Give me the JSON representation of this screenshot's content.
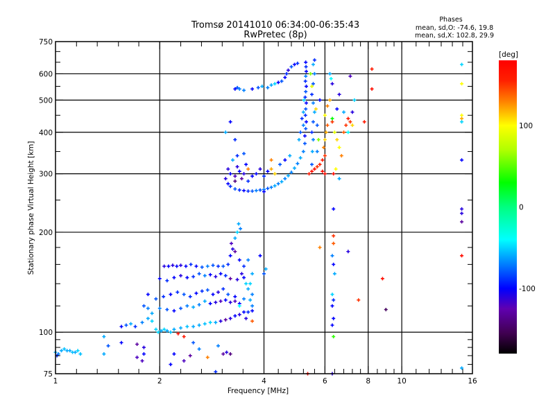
{
  "chart_data": {
    "type": "scatter",
    "title": "Tromsø 20141010 06:34:00-06:35:43",
    "subtitle": "RwPretec (8p)",
    "stats": {
      "heading": "Phases",
      "line_o": "mean, sd,O: -74.6, 19.8",
      "line_x": "mean, sd,X: 102.8, 29.9"
    },
    "xlabel": "Frequency [MHz]",
    "ylabel": "Stationary phase Virtual Height [km]",
    "xscale": "log",
    "yscale": "log",
    "xlim": [
      1,
      16
    ],
    "ylim": [
      75,
      750
    ],
    "xticks": [
      1,
      2,
      4,
      6,
      8,
      10,
      16
    ],
    "xtick_labels": [
      "1",
      "2",
      "4",
      "6",
      "8",
      "10",
      "16"
    ],
    "yticks": [
      75,
      100,
      200,
      300,
      400,
      500,
      600,
      750
    ],
    "ytick_labels": [
      "75",
      "100",
      "200",
      "300",
      "400",
      "500",
      "600",
      "750"
    ],
    "grid": true,
    "colorbar": {
      "label": "[deg]",
      "range": [
        -180,
        180
      ],
      "ticks": [
        100,
        0,
        -100
      ],
      "tick_labels": [
        "100",
        "0",
        "-100"
      ]
    },
    "point_format": [
      "frequency_MHz",
      "height_km",
      "phase_deg"
    ],
    "points": [
      [
        1.0,
        87,
        -60
      ],
      [
        1.02,
        86,
        -70
      ],
      [
        1.04,
        88,
        -60
      ],
      [
        1.06,
        89,
        -55
      ],
      [
        1.08,
        88,
        -60
      ],
      [
        1.1,
        88,
        -60
      ],
      [
        1.12,
        87,
        -55
      ],
      [
        1.14,
        87,
        -60
      ],
      [
        1.16,
        88,
        -50
      ],
      [
        1.18,
        86,
        -55
      ],
      [
        1.01,
        85,
        -90
      ],
      [
        1.38,
        97,
        -60
      ],
      [
        1.42,
        91,
        -80
      ],
      [
        1.38,
        86,
        -60
      ],
      [
        1.55,
        93,
        -100
      ],
      [
        1.72,
        92,
        -130
      ],
      [
        1.72,
        84,
        -120
      ],
      [
        1.8,
        90,
        -110
      ],
      [
        1.8,
        86,
        -100
      ],
      [
        1.78,
        82,
        -120
      ],
      [
        2.26,
        99,
        170
      ],
      [
        2.35,
        97,
        160
      ],
      [
        2.5,
        93,
        -80
      ],
      [
        2.45,
        85,
        -130
      ],
      [
        2.6,
        89,
        -70
      ],
      [
        2.75,
        84,
        130
      ],
      [
        3.12,
        87,
        -110
      ],
      [
        3.2,
        86,
        -140
      ],
      [
        2.95,
        91,
        -70
      ],
      [
        3.05,
        86,
        -130
      ],
      [
        2.2,
        86,
        -100
      ],
      [
        2.15,
        80,
        -100
      ],
      [
        2.35,
        82,
        -120
      ],
      [
        2.9,
        76,
        -90
      ],
      [
        5.35,
        75,
        170
      ],
      [
        6.3,
        75,
        -110
      ],
      [
        6.35,
        97,
        40
      ],
      [
        1.55,
        104,
        -100
      ],
      [
        1.6,
        105,
        -80
      ],
      [
        1.65,
        106,
        -60
      ],
      [
        1.7,
        104,
        -90
      ],
      [
        1.78,
        107,
        -70
      ],
      [
        1.85,
        110,
        -60
      ],
      [
        1.9,
        108,
        -50
      ],
      [
        1.95,
        102,
        -50
      ],
      [
        1.98,
        100,
        -50
      ],
      [
        2.02,
        101,
        -60
      ],
      [
        2.06,
        102,
        -50
      ],
      [
        2.1,
        101,
        -60
      ],
      [
        2.15,
        100,
        -55
      ],
      [
        2.2,
        102,
        -60
      ],
      [
        2.3,
        103,
        -60
      ],
      [
        2.4,
        104,
        -55
      ],
      [
        2.5,
        104,
        -60
      ],
      [
        2.6,
        105,
        -60
      ],
      [
        2.7,
        106,
        -55
      ],
      [
        2.8,
        107,
        -50
      ],
      [
        2.9,
        107,
        -60
      ],
      [
        3.0,
        108,
        -110
      ],
      [
        3.1,
        109,
        -130
      ],
      [
        3.2,
        110,
        -110
      ],
      [
        3.3,
        112,
        -100
      ],
      [
        3.4,
        113,
        -110
      ],
      [
        3.5,
        115,
        -100
      ],
      [
        3.6,
        115,
        -90
      ],
      [
        3.7,
        116,
        -100
      ],
      [
        1.8,
        120,
        -80
      ],
      [
        1.85,
        118,
        -70
      ],
      [
        1.9,
        114,
        -60
      ],
      [
        2.0,
        118,
        -70
      ],
      [
        2.1,
        117,
        -80
      ],
      [
        2.2,
        116,
        -100
      ],
      [
        2.3,
        118,
        -80
      ],
      [
        2.4,
        120,
        -70
      ],
      [
        2.5,
        119,
        -60
      ],
      [
        2.6,
        121,
        -70
      ],
      [
        2.7,
        124,
        -60
      ],
      [
        2.8,
        122,
        -100
      ],
      [
        2.9,
        123,
        -110
      ],
      [
        3.0,
        124,
        -120
      ],
      [
        3.1,
        125,
        -100
      ],
      [
        3.2,
        123,
        -110
      ],
      [
        3.3,
        124,
        -120
      ],
      [
        3.4,
        122,
        -100
      ],
      [
        1.85,
        130,
        -100
      ],
      [
        1.95,
        126,
        -80
      ],
      [
        2.05,
        128,
        -90
      ],
      [
        2.15,
        130,
        -100
      ],
      [
        2.25,
        132,
        -90
      ],
      [
        2.35,
        130,
        -80
      ],
      [
        2.45,
        128,
        -90
      ],
      [
        2.55,
        131,
        -100
      ],
      [
        2.65,
        133,
        -90
      ],
      [
        2.75,
        134,
        -80
      ],
      [
        2.85,
        130,
        -100
      ],
      [
        2.95,
        132,
        -110
      ],
      [
        3.05,
        135,
        -90
      ],
      [
        3.15,
        130,
        -80
      ],
      [
        3.3,
        128,
        -100
      ],
      [
        3.5,
        126,
        -70
      ],
      [
        3.65,
        125,
        -60
      ],
      [
        2.0,
        145,
        -100
      ],
      [
        2.1,
        143,
        -90
      ],
      [
        2.2,
        146,
        -100
      ],
      [
        2.3,
        148,
        -110
      ],
      [
        2.4,
        146,
        -100
      ],
      [
        2.5,
        147,
        -90
      ],
      [
        2.6,
        150,
        -80
      ],
      [
        2.7,
        148,
        -70
      ],
      [
        2.8,
        149,
        -100
      ],
      [
        2.9,
        147,
        -110
      ],
      [
        3.0,
        150,
        -100
      ],
      [
        3.1,
        148,
        -90
      ],
      [
        3.2,
        145,
        -130
      ],
      [
        3.35,
        144,
        -110
      ],
      [
        3.5,
        146,
        -100
      ],
      [
        2.06,
        158,
        -110
      ],
      [
        2.12,
        158,
        -100
      ],
      [
        2.18,
        159,
        -110
      ],
      [
        2.24,
        158,
        -100
      ],
      [
        2.3,
        159,
        -110
      ],
      [
        2.38,
        158,
        -100
      ],
      [
        2.46,
        160,
        -90
      ],
      [
        2.55,
        158,
        -100
      ],
      [
        2.65,
        157,
        -80
      ],
      [
        2.75,
        158,
        -70
      ],
      [
        2.85,
        159,
        -80
      ],
      [
        2.95,
        158,
        -90
      ],
      [
        3.05,
        158,
        -80
      ],
      [
        3.15,
        160,
        -90
      ],
      [
        3.2,
        170,
        -100
      ],
      [
        3.25,
        178,
        -110
      ],
      [
        3.22,
        185,
        -120
      ],
      [
        3.3,
        192,
        -60
      ],
      [
        3.35,
        200,
        -50
      ],
      [
        3.38,
        212,
        -60
      ],
      [
        3.42,
        205,
        -70
      ],
      [
        3.3,
        175,
        -130
      ],
      [
        3.4,
        165,
        -100
      ],
      [
        3.5,
        158,
        -90
      ],
      [
        3.45,
        150,
        -110
      ],
      [
        3.55,
        140,
        -50
      ],
      [
        3.6,
        135,
        -60
      ],
      [
        3.7,
        130,
        -70
      ],
      [
        3.65,
        140,
        -50
      ],
      [
        3.7,
        150,
        -60
      ],
      [
        3.6,
        165,
        -70
      ],
      [
        4.0,
        150,
        -80
      ],
      [
        4.05,
        155,
        -60
      ],
      [
        3.9,
        170,
        -100
      ],
      [
        3.7,
        120,
        -70
      ],
      [
        3.55,
        110,
        -110
      ],
      [
        3.7,
        108,
        140
      ],
      [
        3.4,
        120,
        -40
      ],
      [
        3.1,
        290,
        -110
      ],
      [
        3.15,
        280,
        -100
      ],
      [
        3.2,
        275,
        -90
      ],
      [
        3.3,
        270,
        -80
      ],
      [
        3.4,
        268,
        -90
      ],
      [
        3.5,
        267,
        -100
      ],
      [
        3.6,
        266,
        -90
      ],
      [
        3.7,
        266,
        -80
      ],
      [
        3.8,
        267,
        -70
      ],
      [
        3.9,
        268,
        -80
      ],
      [
        4.0,
        269,
        -70
      ],
      [
        4.1,
        271,
        -80
      ],
      [
        4.2,
        273,
        -70
      ],
      [
        4.3,
        276,
        -60
      ],
      [
        4.4,
        280,
        -70
      ],
      [
        4.5,
        284,
        -60
      ],
      [
        4.6,
        290,
        -70
      ],
      [
        4.7,
        296,
        -60
      ],
      [
        4.8,
        303,
        -70
      ],
      [
        4.9,
        312,
        -60
      ],
      [
        5.0,
        322,
        -70
      ],
      [
        5.1,
        335,
        -60
      ],
      [
        5.2,
        350,
        -70
      ],
      [
        5.25,
        370,
        -80
      ],
      [
        3.15,
        310,
        -110
      ],
      [
        3.2,
        300,
        -100
      ],
      [
        3.3,
        295,
        -120
      ],
      [
        3.35,
        315,
        -110
      ],
      [
        3.4,
        305,
        -100
      ],
      [
        3.45,
        290,
        -130
      ],
      [
        3.5,
        300,
        -110
      ],
      [
        3.55,
        320,
        -100
      ],
      [
        3.6,
        285,
        -90
      ],
      [
        3.7,
        295,
        -100
      ],
      [
        3.25,
        330,
        -60
      ],
      [
        3.35,
        340,
        -90
      ],
      [
        3.5,
        345,
        -80
      ],
      [
        3.3,
        285,
        -140
      ],
      [
        3.6,
        310,
        130
      ],
      [
        3.8,
        300,
        -100
      ],
      [
        3.9,
        310,
        -110
      ],
      [
        4.0,
        295,
        -90
      ],
      [
        4.1,
        305,
        -100
      ],
      [
        4.2,
        310,
        120
      ],
      [
        4.3,
        300,
        110
      ],
      [
        4.45,
        320,
        -80
      ],
      [
        4.6,
        330,
        -100
      ],
      [
        4.75,
        340,
        -60
      ],
      [
        4.2,
        330,
        130
      ],
      [
        5.25,
        390,
        -100
      ],
      [
        5.28,
        410,
        -80
      ],
      [
        5.3,
        430,
        -100
      ],
      [
        5.27,
        450,
        -90
      ],
      [
        5.28,
        470,
        -80
      ],
      [
        5.3,
        490,
        -100
      ],
      [
        5.26,
        510,
        -90
      ],
      [
        5.28,
        530,
        -80
      ],
      [
        5.3,
        550,
        -100
      ],
      [
        5.27,
        570,
        -90
      ],
      [
        5.28,
        590,
        -70
      ],
      [
        5.3,
        610,
        -100
      ],
      [
        5.29,
        630,
        -90
      ],
      [
        5.28,
        650,
        -100
      ],
      [
        5.2,
        420,
        -70
      ],
      [
        5.2,
        460,
        -60
      ],
      [
        5.22,
        500,
        -50
      ],
      [
        5.1,
        400,
        -80
      ],
      [
        5.05,
        380,
        -60
      ],
      [
        5.15,
        440,
        -90
      ],
      [
        5.5,
        320,
        -80
      ],
      [
        5.52,
        350,
        -60
      ],
      [
        5.55,
        380,
        -70
      ],
      [
        5.5,
        400,
        -90
      ],
      [
        5.55,
        430,
        -80
      ],
      [
        5.6,
        460,
        -60
      ],
      [
        5.55,
        490,
        -70
      ],
      [
        5.5,
        520,
        -90
      ],
      [
        5.55,
        560,
        -80
      ],
      [
        5.6,
        600,
        -70
      ],
      [
        5.55,
        640,
        -60
      ],
      [
        5.6,
        660,
        -90
      ],
      [
        5.7,
        350,
        -70
      ],
      [
        5.75,
        380,
        60
      ],
      [
        5.7,
        420,
        -80
      ],
      [
        5.65,
        470,
        110
      ],
      [
        5.8,
        500,
        -100
      ],
      [
        5.45,
        600,
        60
      ],
      [
        5.5,
        550,
        90
      ],
      [
        5.4,
        300,
        160
      ],
      [
        5.5,
        305,
        170
      ],
      [
        5.6,
        310,
        165
      ],
      [
        5.7,
        315,
        150
      ],
      [
        5.8,
        320,
        155
      ],
      [
        5.9,
        330,
        160
      ],
      [
        6.0,
        340,
        150
      ],
      [
        5.95,
        360,
        130
      ],
      [
        6.0,
        380,
        110
      ],
      [
        6.05,
        400,
        120
      ],
      [
        6.1,
        420,
        140
      ],
      [
        6.0,
        450,
        100
      ],
      [
        6.1,
        480,
        130
      ],
      [
        6.2,
        500,
        120
      ],
      [
        6.3,
        430,
        150
      ],
      [
        6.4,
        400,
        90
      ],
      [
        6.5,
        380,
        110
      ],
      [
        6.6,
        360,
        100
      ],
      [
        6.7,
        340,
        130
      ],
      [
        6.8,
        400,
        140
      ],
      [
        6.9,
        420,
        150
      ],
      [
        7.0,
        440,
        160
      ],
      [
        7.1,
        430,
        150
      ],
      [
        7.2,
        420,
        110
      ],
      [
        7.0,
        400,
        -40
      ],
      [
        6.5,
        470,
        -100
      ],
      [
        6.8,
        460,
        -60
      ],
      [
        6.3,
        440,
        30
      ],
      [
        7.3,
        500,
        -50
      ],
      [
        7.2,
        460,
        -110
      ],
      [
        6.35,
        300,
        170
      ],
      [
        6.45,
        310,
        100
      ],
      [
        6.6,
        290,
        -60
      ],
      [
        6.0,
        300,
        170
      ],
      [
        5.9,
        305,
        170
      ],
      [
        6.2,
        600,
        -60
      ],
      [
        6.25,
        580,
        -40
      ],
      [
        6.3,
        560,
        -110
      ],
      [
        7.1,
        590,
        -120
      ],
      [
        6.6,
        520,
        -110
      ],
      [
        8.2,
        540,
        170
      ],
      [
        8.2,
        620,
        160
      ],
      [
        7.8,
        430,
        160
      ],
      [
        3.3,
        540,
        -100
      ],
      [
        3.35,
        545,
        -80
      ],
      [
        3.4,
        540,
        -70
      ],
      [
        3.5,
        535,
        -70
      ],
      [
        3.7,
        540,
        -100
      ],
      [
        3.85,
        545,
        -80
      ],
      [
        3.95,
        550,
        -60
      ],
      [
        4.1,
        545,
        -70
      ],
      [
        4.2,
        555,
        -60
      ],
      [
        4.3,
        560,
        -50
      ],
      [
        4.4,
        565,
        -100
      ],
      [
        4.5,
        570,
        -80
      ],
      [
        4.6,
        585,
        -100
      ],
      [
        4.65,
        600,
        -90
      ],
      [
        4.7,
        615,
        -110
      ],
      [
        4.8,
        630,
        -80
      ],
      [
        4.9,
        640,
        -100
      ],
      [
        5.0,
        645,
        -90
      ],
      [
        3.2,
        430,
        -100
      ],
      [
        3.1,
        400,
        -60
      ],
      [
        3.3,
        380,
        -90
      ],
      [
        14.9,
        640,
        -50
      ],
      [
        14.9,
        560,
        100
      ],
      [
        14.9,
        450,
        100
      ],
      [
        14.9,
        440,
        120
      ],
      [
        14.9,
        430,
        -50
      ],
      [
        14.9,
        330,
        -100
      ],
      [
        14.9,
        235,
        -110
      ],
      [
        14.9,
        228,
        -110
      ],
      [
        14.9,
        215,
        -130
      ],
      [
        14.9,
        170,
        170
      ],
      [
        14.9,
        78,
        -60
      ],
      [
        6.35,
        235,
        -100
      ],
      [
        6.35,
        195,
        150
      ],
      [
        6.35,
        185,
        140
      ],
      [
        6.3,
        170,
        -70
      ],
      [
        6.35,
        160,
        -100
      ],
      [
        6.4,
        150,
        -60
      ],
      [
        6.35,
        125,
        -90
      ],
      [
        6.3,
        120,
        -100
      ],
      [
        6.35,
        110,
        -100
      ],
      [
        6.3,
        105,
        -100
      ],
      [
        7.0,
        175,
        -110
      ],
      [
        7.5,
        125,
        150
      ],
      [
        8.8,
        145,
        170
      ],
      [
        9.0,
        117,
        -150
      ],
      [
        4.0,
        265,
        -100
      ],
      [
        5.8,
        180,
        130
      ],
      [
        6.3,
        130,
        -50
      ]
    ]
  }
}
